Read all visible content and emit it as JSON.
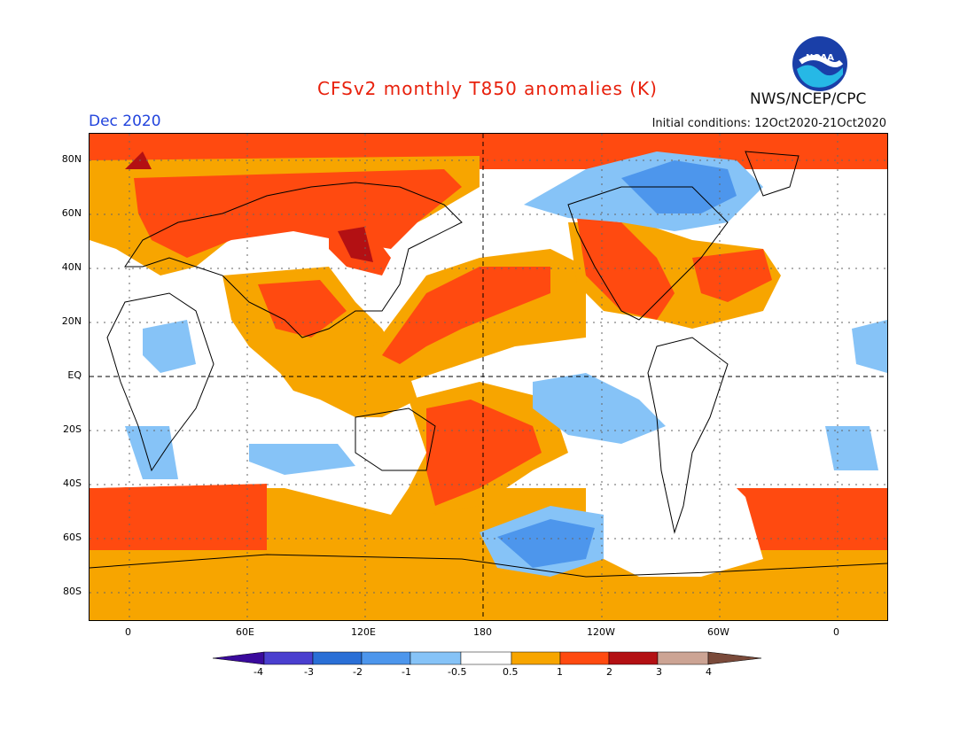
{
  "header": {
    "title": "CFSv2 monthly T850 anomalies (K)",
    "month": "Dec 2020",
    "initial_conditions": "Initial conditions: 12Oct2020-21Oct2020",
    "agency": "NWS/NCEP/CPC",
    "logo_text": "NOAA"
  },
  "axes": {
    "lat_labels": [
      "80N",
      "60N",
      "40N",
      "20N",
      "EQ",
      "20S",
      "40S",
      "60S",
      "80S"
    ],
    "lat_values": [
      80,
      60,
      40,
      20,
      0,
      -20,
      -40,
      -60,
      -80
    ],
    "lon_labels": [
      "0",
      "60E",
      "120E",
      "180",
      "120W",
      "60W",
      "0"
    ],
    "lon_values": [
      0,
      60,
      120,
      180,
      240,
      300,
      360
    ]
  },
  "legend": {
    "labels": [
      "-4",
      "-3",
      "-2",
      "-1",
      "-0.5",
      "0.5",
      "1",
      "2",
      "3",
      "4"
    ],
    "colors": [
      "#3a0a9c",
      "#4a3fcf",
      "#2a6fd6",
      "#4d96ec",
      "#86c3f7",
      "#ffffff",
      "#f7a500",
      "#ff4a10",
      "#b31013",
      "#cca494",
      "#7a4a3a"
    ]
  },
  "colors": {
    "title": "#e8200c",
    "month": "#2244dd"
  }
}
